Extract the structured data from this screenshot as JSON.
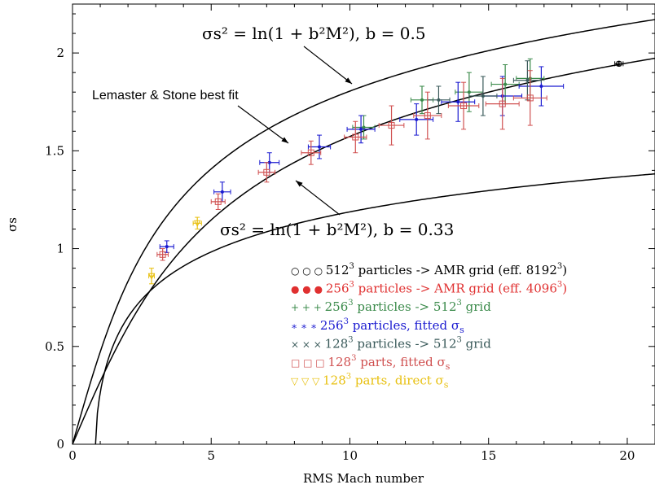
{
  "chart_data": {
    "type": "scatter",
    "xlabel": "RMS Mach number",
    "ylabel": "σs",
    "xlim": [
      0,
      21
    ],
    "ylim": [
      0,
      2.25
    ],
    "xticks": [
      "0",
      "5",
      "10",
      "15",
      "20"
    ],
    "yticks": [
      "0",
      "0.5",
      "1",
      "1.5",
      "2"
    ],
    "grid": false,
    "legend_position": "lower-right",
    "curves": [
      {
        "name": "σs² = ln(1 + b²M²), b = 0.5",
        "b": 0.5
      },
      {
        "name": "Lemaster & Stone best fit"
      },
      {
        "name": "σs² = ln(1 + b²M²), b = 0.33",
        "b": 0.33
      }
    ],
    "annotations": [
      {
        "text": "σs² = ln(1 + b²M²), b = 0.5"
      },
      {
        "text": "Lemaster & Stone best fit"
      },
      {
        "text": "σs² = ln(1 + b²M²), b = 0.33"
      }
    ],
    "series": [
      {
        "name": "512³ particles -> AMR grid (eff. 8192³)",
        "color": "#000000",
        "marker": "circle",
        "points": [
          [
            19.7,
            1.945,
            0.15,
            0.01
          ]
        ]
      },
      {
        "name": "256³ particles -> AMR grid (eff. 4096³)",
        "color": "#e03030",
        "marker": "dot",
        "points": []
      },
      {
        "name": "256³ particles -> 512³ grid",
        "color": "#3a8a4a",
        "marker": "plus",
        "points": [
          [
            10.5,
            1.62,
            0.4,
            0.06
          ],
          [
            12.6,
            1.76,
            0.4,
            0.07
          ],
          [
            14.3,
            1.8,
            0.5,
            0.1
          ],
          [
            15.6,
            1.84,
            0.5,
            0.1
          ],
          [
            16.5,
            1.87,
            0.5,
            0.1
          ]
        ]
      },
      {
        "name": "256³ particles, fitted σs",
        "color": "#1a1ad0",
        "marker": "asterisk",
        "points": [
          [
            3.4,
            1.01,
            0.25,
            0.03
          ],
          [
            5.4,
            1.29,
            0.3,
            0.05
          ],
          [
            7.1,
            1.44,
            0.35,
            0.05
          ],
          [
            8.9,
            1.52,
            0.4,
            0.06
          ],
          [
            10.4,
            1.61,
            0.5,
            0.07
          ],
          [
            12.4,
            1.66,
            0.6,
            0.08
          ],
          [
            13.9,
            1.75,
            0.6,
            0.1
          ],
          [
            15.5,
            1.78,
            0.7,
            0.1
          ],
          [
            16.9,
            1.83,
            0.8,
            0.1
          ]
        ]
      },
      {
        "name": "128³ particles -> 512³ grid",
        "color": "#3a5a5a",
        "marker": "cross",
        "points": [
          [
            13.2,
            1.76,
            0.4,
            0.07
          ],
          [
            14.8,
            1.78,
            0.5,
            0.1
          ],
          [
            16.4,
            1.86,
            0.5,
            0.1
          ]
        ]
      },
      {
        "name": "128³ parts, fitted σs",
        "color": "#d05050",
        "marker": "square",
        "points": [
          [
            3.25,
            0.97,
            0.2,
            0.03
          ],
          [
            5.25,
            1.24,
            0.25,
            0.04
          ],
          [
            7.0,
            1.39,
            0.3,
            0.05
          ],
          [
            8.6,
            1.49,
            0.35,
            0.06
          ],
          [
            10.2,
            1.57,
            0.4,
            0.08
          ],
          [
            11.5,
            1.63,
            0.45,
            0.1
          ],
          [
            12.8,
            1.68,
            0.5,
            0.12
          ],
          [
            14.1,
            1.73,
            0.55,
            0.12
          ],
          [
            15.5,
            1.74,
            0.6,
            0.13
          ],
          [
            16.5,
            1.77,
            0.6,
            0.14
          ]
        ]
      },
      {
        "name": "128³ parts, direct σs",
        "color": "#e8c010",
        "marker": "triangle",
        "points": [
          [
            2.85,
            0.86,
            0.1,
            0.04
          ],
          [
            4.5,
            1.13,
            0.15,
            0.03
          ]
        ]
      }
    ],
    "legend": [
      {
        "sym": "○ ○ ○",
        "base": "512",
        "sup": "3",
        "rest": " particles -> AMR grid (eff. 8192",
        "sup2": "3",
        "tail": ")",
        "color": "#000000"
      },
      {
        "sym": "● ● ●",
        "base": "256",
        "sup": "3",
        "rest": " particles -> AMR grid (eff. 4096",
        "sup2": "3",
        "tail": ")",
        "color": "#e03030"
      },
      {
        "sym": "+ + +",
        "base": "256",
        "sup": "3",
        "rest": " particles -> 512",
        "sup2": "3",
        "tail": " grid",
        "color": "#3a8a4a"
      },
      {
        "sym": "∗ ∗ ∗",
        "base": "256",
        "sup": "3",
        "rest": " particles, fitted σ",
        "sup2": "",
        "tail": "",
        "sub": "s",
        "color": "#1a1ad0"
      },
      {
        "sym": "× × ×",
        "base": "128",
        "sup": "3",
        "rest": " particles -> 512",
        "sup2": "3",
        "tail": " grid",
        "color": "#3a5a5a"
      },
      {
        "sym": "□ □ □",
        "base": "128",
        "sup": "3",
        "rest": " parts, fitted σ",
        "sup2": "",
        "tail": "",
        "sub": "s",
        "color": "#d05050"
      },
      {
        "sym": "▽ ▽ ▽",
        "base": "128",
        "sup": "3",
        "rest": " parts, direct σ",
        "sup2": "",
        "tail": "",
        "sub": "s",
        "color": "#e8c010"
      }
    ]
  }
}
